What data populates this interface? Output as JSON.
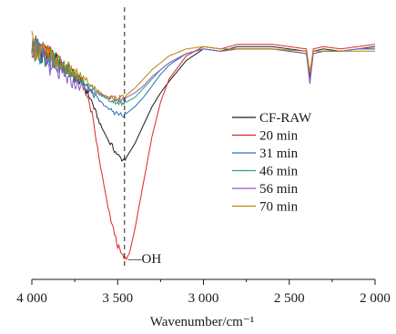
{
  "chart_data": {
    "type": "line",
    "title": "",
    "xlabel": "Wavenumber/cm⁻¹",
    "ylabel": "",
    "x_reversed": true,
    "xlim": [
      4000,
      2000
    ],
    "ylim": [
      0,
      1
    ],
    "x_ticks": [
      4000,
      3500,
      3000,
      2500,
      2000
    ],
    "x_tick_labels": [
      "4 000",
      "3 500",
      "3 000",
      "2 500",
      "2 000"
    ],
    "grid": false,
    "legend_position": "right",
    "reference_line": {
      "x": 3460,
      "style": "dashed"
    },
    "annotation": {
      "text": "—OH",
      "x": 3440,
      "y": 0.02
    },
    "series": [
      {
        "name": "CF-RAW",
        "color": "#1a1a1a",
        "x": [
          4000,
          3900,
          3800,
          3700,
          3650,
          3600,
          3550,
          3500,
          3470,
          3450,
          3400,
          3350,
          3300,
          3250,
          3200,
          3100,
          3000,
          2900,
          2800,
          2600,
          2400,
          2380,
          2360,
          2300,
          2200,
          2100,
          2000
        ],
        "y": [
          0.95,
          0.9,
          0.85,
          0.78,
          0.7,
          0.6,
          0.53,
          0.47,
          0.45,
          0.46,
          0.52,
          0.6,
          0.68,
          0.74,
          0.79,
          0.88,
          0.93,
          0.92,
          0.94,
          0.94,
          0.92,
          0.81,
          0.92,
          0.93,
          0.92,
          0.93,
          0.94
        ]
      },
      {
        "name": "20 min",
        "color": "#d62828",
        "x": [
          4000,
          3900,
          3800,
          3700,
          3650,
          3600,
          3550,
          3500,
          3470,
          3450,
          3430,
          3400,
          3350,
          3300,
          3250,
          3200,
          3100,
          3000,
          2900,
          2800,
          2600,
          2400,
          2380,
          2360,
          2300,
          2200,
          2100,
          2000
        ],
        "y": [
          0.95,
          0.9,
          0.85,
          0.78,
          0.65,
          0.42,
          0.22,
          0.08,
          0.03,
          0.02,
          0.05,
          0.15,
          0.35,
          0.55,
          0.7,
          0.8,
          0.9,
          0.94,
          0.93,
          0.95,
          0.95,
          0.93,
          0.82,
          0.93,
          0.94,
          0.93,
          0.94,
          0.95
        ]
      },
      {
        "name": "31 min",
        "color": "#2a6ebb",
        "x": [
          4000,
          3900,
          3800,
          3700,
          3650,
          3600,
          3550,
          3500,
          3470,
          3450,
          3400,
          3350,
          3300,
          3250,
          3200,
          3100,
          3000,
          2900,
          2800,
          2600,
          2400,
          2380,
          2360,
          2300,
          2200,
          2100,
          2000
        ],
        "y": [
          0.94,
          0.89,
          0.84,
          0.78,
          0.74,
          0.7,
          0.67,
          0.65,
          0.64,
          0.65,
          0.68,
          0.72,
          0.77,
          0.82,
          0.86,
          0.91,
          0.93,
          0.92,
          0.93,
          0.93,
          0.91,
          0.78,
          0.91,
          0.92,
          0.92,
          0.93,
          0.93
        ]
      },
      {
        "name": "46 min",
        "color": "#2aa078",
        "x": [
          4000,
          3900,
          3800,
          3700,
          3650,
          3600,
          3550,
          3500,
          3470,
          3450,
          3400,
          3350,
          3300,
          3250,
          3200,
          3100,
          3000,
          2900,
          2800,
          2600,
          2400,
          2380,
          2360,
          2300,
          2200,
          2100,
          2000
        ],
        "y": [
          0.94,
          0.89,
          0.84,
          0.79,
          0.76,
          0.73,
          0.71,
          0.7,
          0.69,
          0.7,
          0.72,
          0.76,
          0.8,
          0.84,
          0.87,
          0.91,
          0.93,
          0.92,
          0.93,
          0.93,
          0.91,
          0.79,
          0.91,
          0.92,
          0.92,
          0.93,
          0.93
        ]
      },
      {
        "name": "56 min",
        "color": "#8e5bbf",
        "x": [
          4000,
          3900,
          3800,
          3700,
          3650,
          3600,
          3550,
          3500,
          3470,
          3450,
          3400,
          3350,
          3300,
          3250,
          3200,
          3100,
          3000,
          2900,
          2800,
          2600,
          2400,
          2380,
          2360,
          2300,
          2200,
          2100,
          2000
        ],
        "y": [
          0.95,
          0.86,
          0.8,
          0.76,
          0.75,
          0.73,
          0.72,
          0.71,
          0.71,
          0.72,
          0.74,
          0.77,
          0.81,
          0.84,
          0.87,
          0.91,
          0.93,
          0.92,
          0.93,
          0.93,
          0.91,
          0.79,
          0.91,
          0.92,
          0.92,
          0.93,
          0.93
        ]
      },
      {
        "name": "70 min",
        "color": "#b8860b",
        "x": [
          4000,
          3900,
          3800,
          3700,
          3650,
          3600,
          3550,
          3500,
          3470,
          3450,
          3400,
          3350,
          3300,
          3250,
          3200,
          3100,
          3000,
          2900,
          2800,
          2600,
          2400,
          2380,
          2360,
          2300,
          2200,
          2100,
          2000
        ],
        "y": [
          0.95,
          0.9,
          0.85,
          0.8,
          0.77,
          0.74,
          0.72,
          0.72,
          0.72,
          0.73,
          0.76,
          0.8,
          0.84,
          0.87,
          0.9,
          0.93,
          0.94,
          0.93,
          0.93,
          0.93,
          0.92,
          0.83,
          0.92,
          0.92,
          0.92,
          0.92,
          0.92
        ]
      }
    ]
  }
}
